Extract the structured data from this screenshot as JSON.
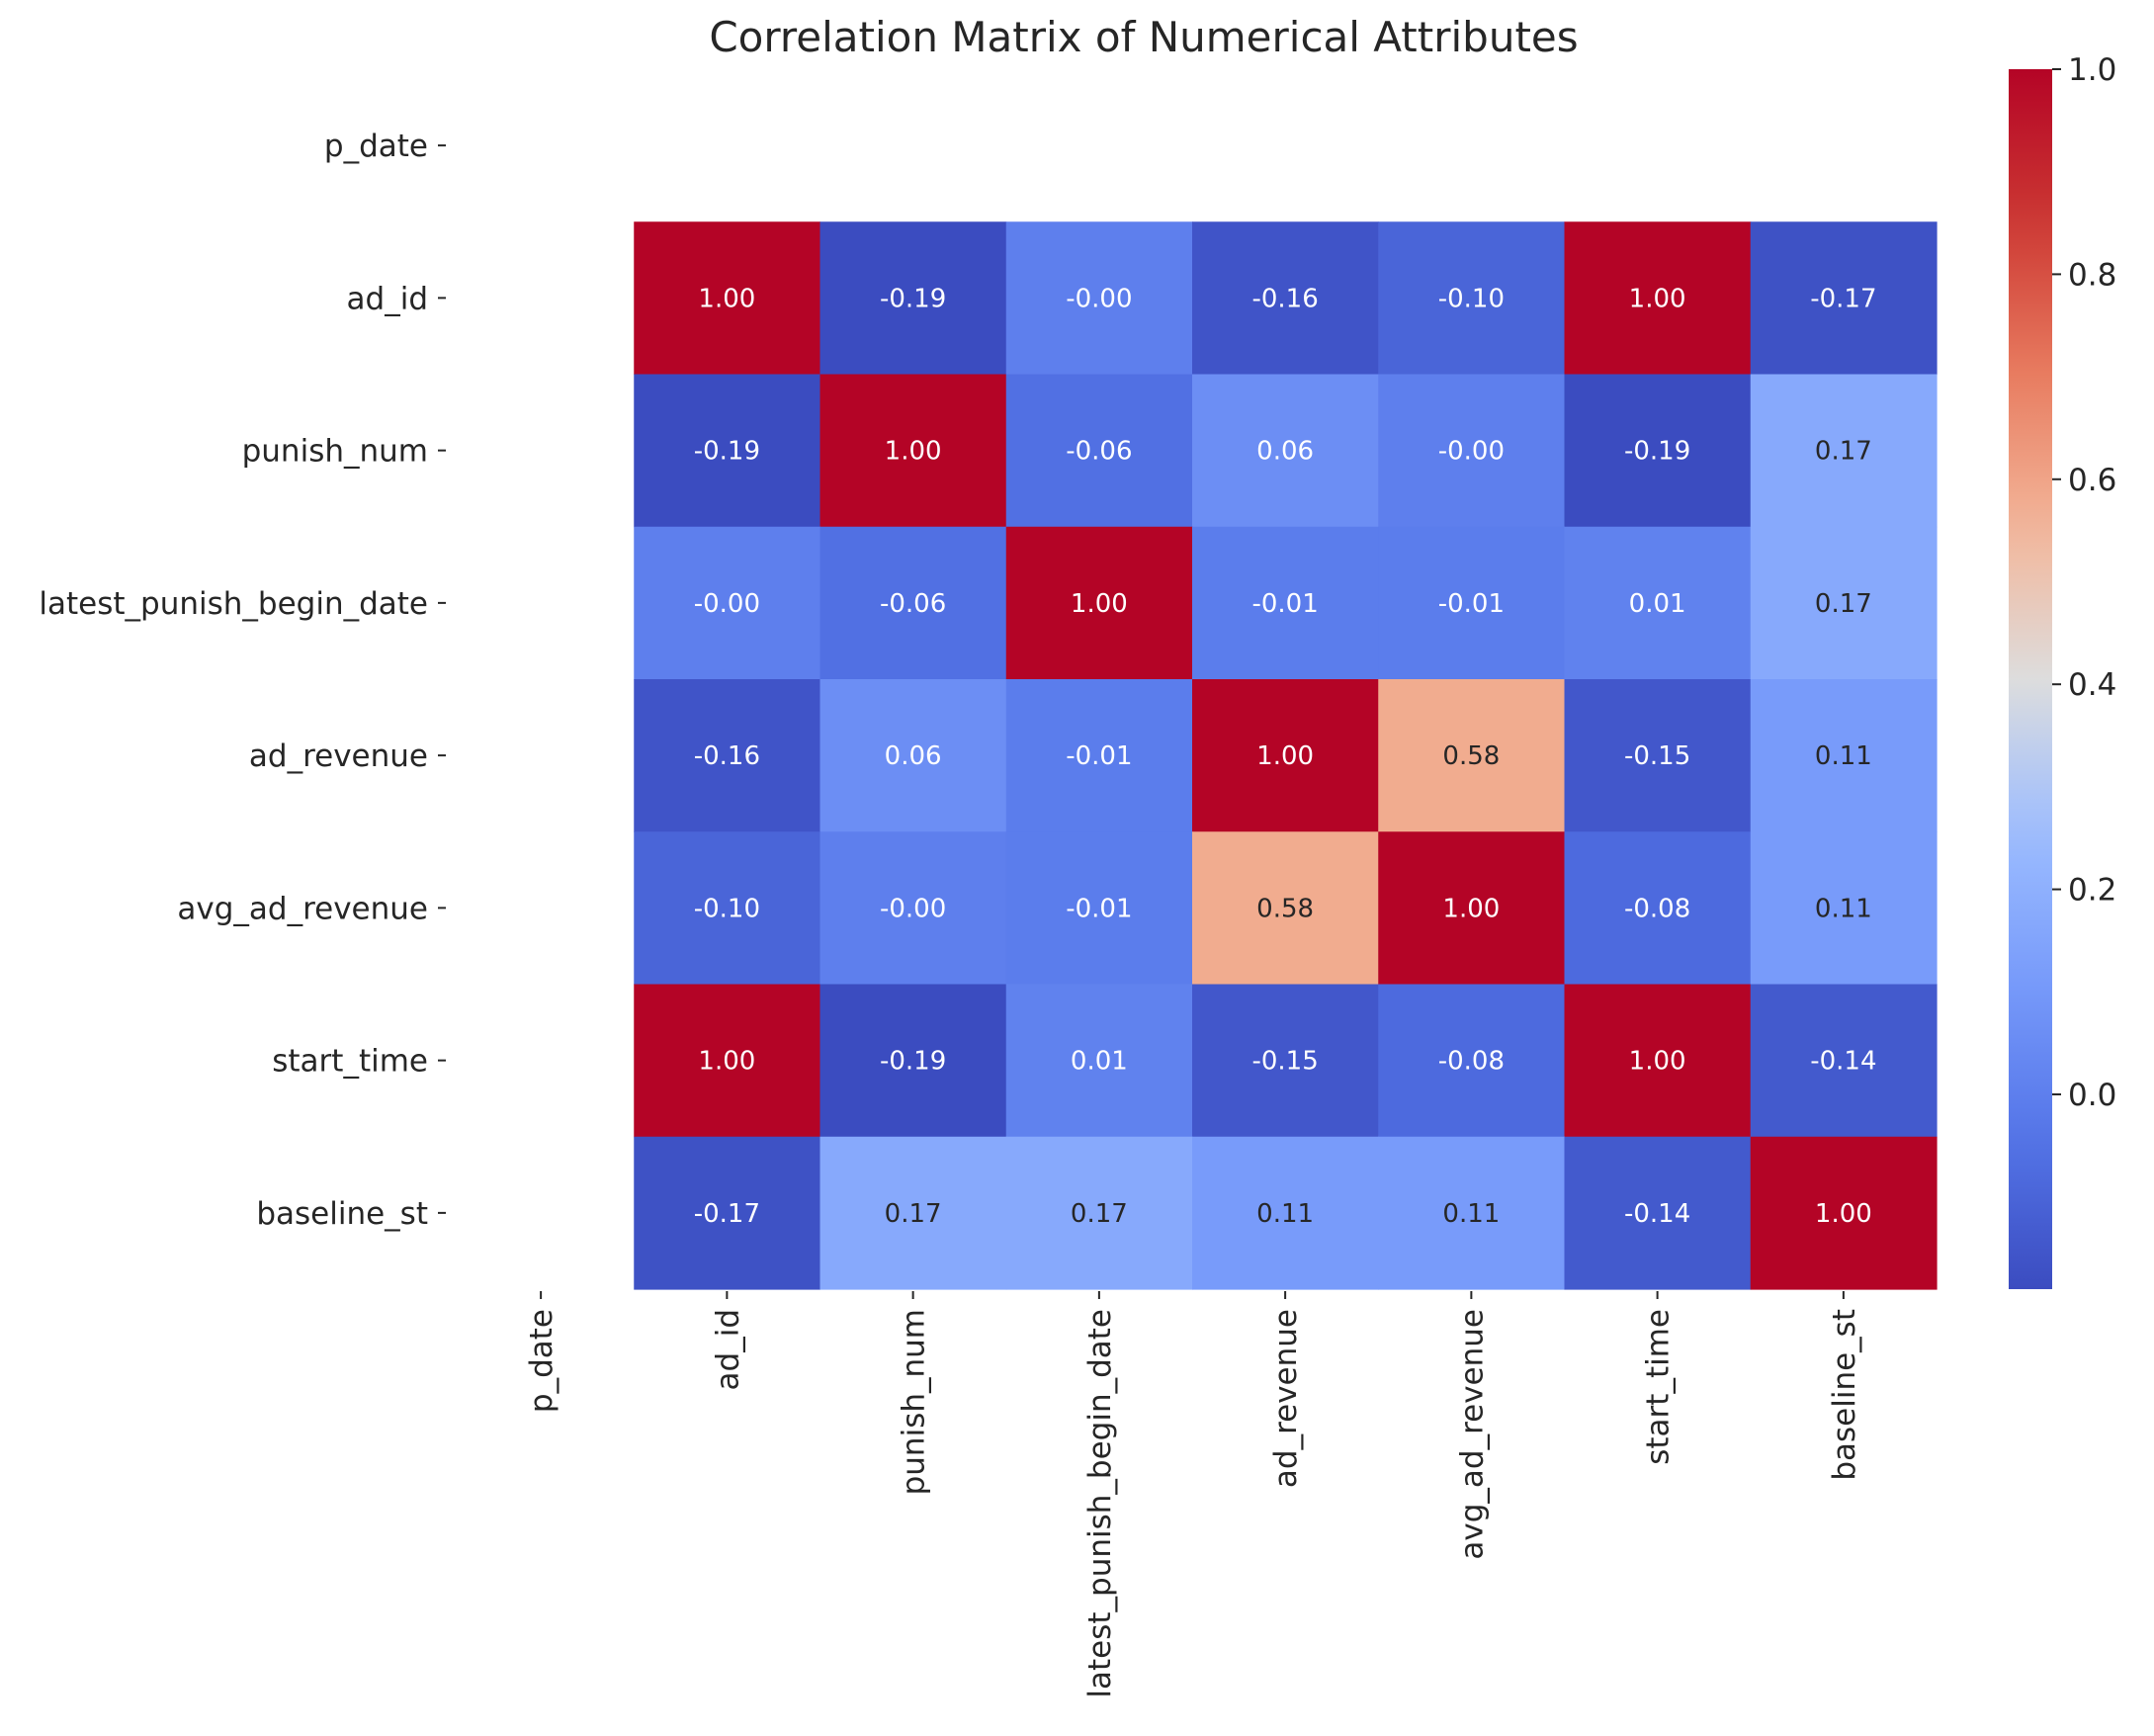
{
  "chart_data": {
    "type": "heatmap",
    "title": "Correlation Matrix of Numerical Attributes",
    "xlabel": "",
    "ylabel": "",
    "labels": [
      "p_date",
      "ad_id",
      "punish_num",
      "latest_punish_begin_date",
      "ad_revenue",
      "avg_ad_revenue",
      "start_time",
      "baseline_st"
    ],
    "matrix": [
      [
        null,
        null,
        null,
        null,
        null,
        null,
        null,
        null
      ],
      [
        null,
        1.0,
        -0.19,
        -0.0,
        -0.16,
        -0.1,
        1.0,
        -0.17
      ],
      [
        null,
        -0.19,
        1.0,
        -0.06,
        0.06,
        -0.0,
        -0.19,
        0.17
      ],
      [
        null,
        -0.0,
        -0.06,
        1.0,
        -0.01,
        -0.01,
        0.01,
        0.17
      ],
      [
        null,
        -0.16,
        0.06,
        -0.01,
        1.0,
        0.58,
        -0.15,
        0.11
      ],
      [
        null,
        -0.1,
        -0.0,
        -0.01,
        0.58,
        1.0,
        -0.08,
        0.11
      ],
      [
        null,
        1.0,
        -0.19,
        0.01,
        -0.15,
        -0.08,
        1.0,
        -0.14
      ],
      [
        null,
        -0.17,
        0.17,
        0.17,
        0.11,
        0.11,
        -0.14,
        1.0
      ]
    ],
    "cell_text": [
      [
        "",
        "",
        "",
        "",
        "",
        "",
        "",
        ""
      ],
      [
        "",
        "1.00",
        "-0.19",
        "-0.00",
        "-0.16",
        "-0.10",
        "1.00",
        "-0.17"
      ],
      [
        "",
        "-0.19",
        "1.00",
        "-0.06",
        "0.06",
        "-0.00",
        "-0.19",
        "0.17"
      ],
      [
        "",
        "-0.00",
        "-0.06",
        "1.00",
        "-0.01",
        "-0.01",
        "0.01",
        "0.17"
      ],
      [
        "",
        "-0.16",
        "0.06",
        "-0.01",
        "1.00",
        "0.58",
        "-0.15",
        "0.11"
      ],
      [
        "",
        "-0.10",
        "-0.00",
        "-0.01",
        "0.58",
        "1.00",
        "-0.08",
        "0.11"
      ],
      [
        "",
        "1.00",
        "-0.19",
        "0.01",
        "-0.15",
        "-0.08",
        "1.00",
        "-0.14"
      ],
      [
        "",
        "-0.17",
        "0.17",
        "0.17",
        "0.11",
        "0.11",
        "-0.14",
        "1.00"
      ]
    ],
    "colormap": "coolwarm",
    "vmin": -0.19,
    "vmax": 1.0,
    "colorbar": {
      "ticks": [
        0.0,
        0.2,
        0.4,
        0.6,
        0.8,
        1.0
      ],
      "tick_labels": [
        "0.0",
        "0.2",
        "0.4",
        "0.6",
        "0.8",
        "1.0"
      ]
    },
    "grid": false,
    "legend": "colorbar-right"
  }
}
